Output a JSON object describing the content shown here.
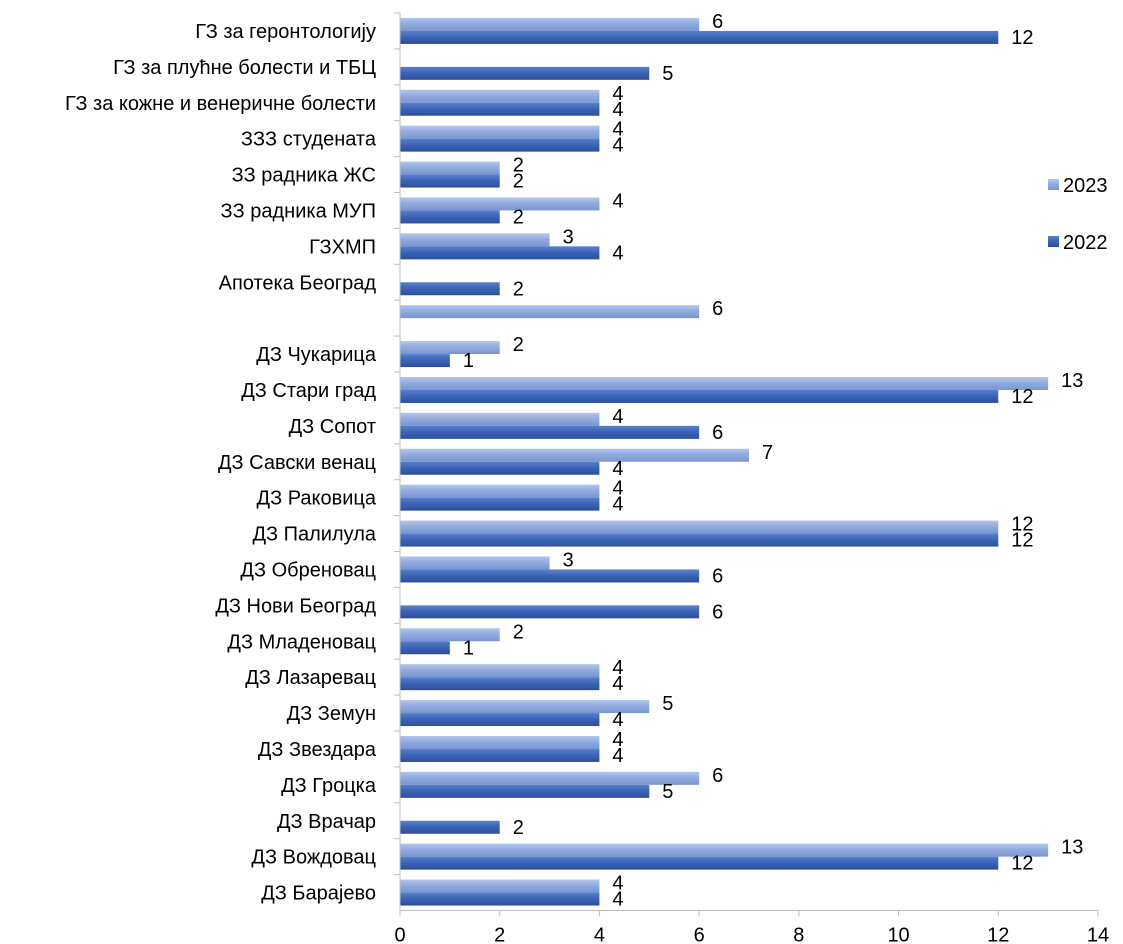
{
  "chart_data": {
    "type": "bar",
    "orientation": "horizontal",
    "categories": [
      "ГЗ за геронтологију",
      "ГЗ за плућне болести и ТБЦ",
      "ГЗ за кожне и венеричне болести",
      "ЗЗЗ студената",
      "ЗЗ радника ЖС",
      "ЗЗ радника МУП",
      "ГЗХМП",
      "Апотека Београд",
      "",
      "ДЗ Чукарица",
      "ДЗ Стари град",
      "ДЗ Сопот",
      "ДЗ Савски венац",
      "ДЗ Раковица",
      "ДЗ Палилула",
      "ДЗ Обреновац",
      "ДЗ Нови Београд",
      "ДЗ Младеновац",
      "ДЗ Лазаревац",
      "ДЗ Земун",
      "ДЗ Звездара",
      "ДЗ Гроцка",
      "ДЗ Врачар",
      "ДЗ Вождовац",
      "ДЗ Барајево"
    ],
    "series": [
      {
        "name": "2023",
        "color": "#8ea9dd",
        "values": [
          6,
          null,
          4,
          4,
          2,
          4,
          3,
          null,
          6,
          2,
          13,
          4,
          7,
          4,
          12,
          3,
          null,
          2,
          4,
          5,
          4,
          6,
          null,
          13,
          4
        ]
      },
      {
        "name": "2022",
        "color": "#3a62b5",
        "values": [
          12,
          5,
          4,
          4,
          2,
          2,
          4,
          2,
          null,
          1,
          12,
          6,
          4,
          4,
          12,
          6,
          6,
          1,
          4,
          4,
          4,
          5,
          2,
          12,
          4
        ]
      }
    ],
    "xlim": [
      0,
      14
    ],
    "xticks": [
      0,
      2,
      4,
      6,
      8,
      10,
      12,
      14
    ],
    "grid": false,
    "legend": "right",
    "title": "",
    "xlabel": "",
    "ylabel": ""
  }
}
